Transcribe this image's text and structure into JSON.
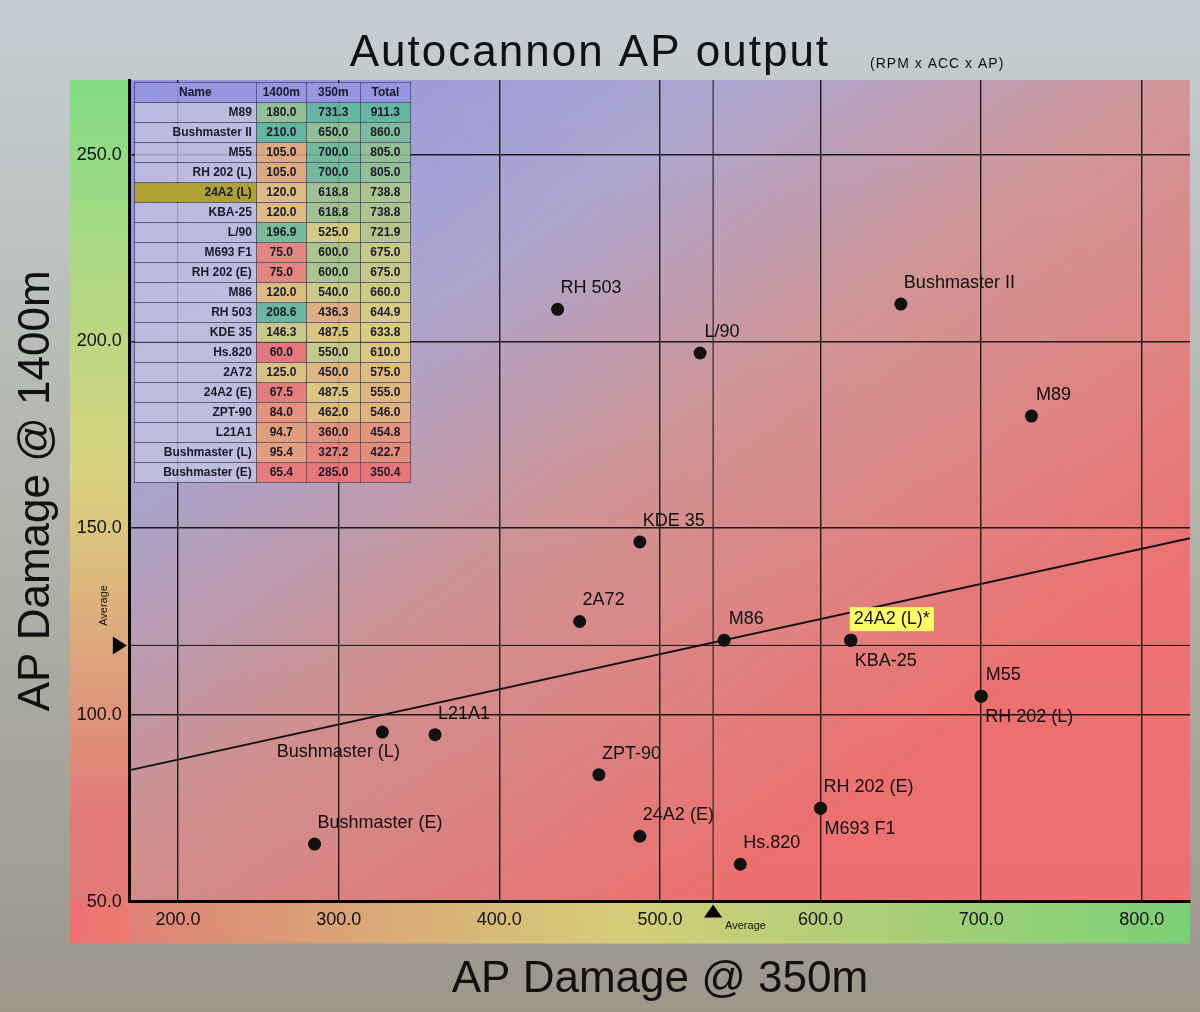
{
  "chart_data": {
    "type": "scatter",
    "title": "Autocannon AP output",
    "subtitle": "(RPM x ACC x AP)",
    "x_label": "AP Damage @ 350m",
    "y_label": "AP Damage @ 1400m",
    "xlim": [
      170,
      830
    ],
    "ylim": [
      50,
      270
    ],
    "xticks": [
      {
        "value": 200,
        "label": "200.0"
      },
      {
        "value": 300,
        "label": "300.0"
      },
      {
        "value": 400,
        "label": "400.0"
      },
      {
        "value": 500,
        "label": "500.0"
      },
      {
        "value": 600,
        "label": "600.0"
      },
      {
        "value": 700,
        "label": "700.0"
      },
      {
        "value": 800,
        "label": "800.0"
      }
    ],
    "yticks": [
      {
        "value": 50,
        "label": "50.0"
      },
      {
        "value": 100,
        "label": "100.0"
      },
      {
        "value": 150,
        "label": "150.0"
      },
      {
        "value": 200,
        "label": "200.0"
      },
      {
        "value": 250,
        "label": "250.0"
      }
    ],
    "grid": true,
    "color": "#111111",
    "points": [
      {
        "label": "M89",
        "x": 731.3,
        "y": 180.0
      },
      {
        "label": "Bushmaster II",
        "x": 650.0,
        "y": 210.0
      },
      {
        "label": "M55",
        "x": 700.0,
        "y": 105.0
      },
      {
        "label": "RH 202 (L)",
        "x": 700.0,
        "y": 105.0
      },
      {
        "label": "24A2 (L)*",
        "x": 618.8,
        "y": 120.0
      },
      {
        "label": "KBA-25",
        "x": 618.8,
        "y": 120.0
      },
      {
        "label": "L/90",
        "x": 525.0,
        "y": 196.9
      },
      {
        "label": "M693 F1",
        "x": 600.0,
        "y": 75.0
      },
      {
        "label": "RH 202 (E)",
        "x": 600.0,
        "y": 75.0
      },
      {
        "label": "M86",
        "x": 540.0,
        "y": 120.0
      },
      {
        "label": "RH 503",
        "x": 436.3,
        "y": 208.6
      },
      {
        "label": "KDE 35",
        "x": 487.5,
        "y": 146.3
      },
      {
        "label": "Hs.820",
        "x": 550.0,
        "y": 60.0
      },
      {
        "label": "2A72",
        "x": 450.0,
        "y": 125.0
      },
      {
        "label": "24A2 (E)",
        "x": 487.5,
        "y": 67.5
      },
      {
        "label": "ZPT-90",
        "x": 462.0,
        "y": 84.0
      },
      {
        "label": "L21A1",
        "x": 360.0,
        "y": 94.7
      },
      {
        "label": "Bushmaster (L)",
        "x": 327.2,
        "y": 95.4
      },
      {
        "label": "Bushmaster (E)",
        "x": 285.0,
        "y": 65.4
      }
    ],
    "highlight": "24A2 (L)*",
    "trend_line": {
      "x": [
        170,
        830
      ],
      "y": [
        85.2,
        147.3
      ]
    },
    "average": {
      "label": "Average",
      "x": 533.1,
      "y": 118.6
    }
  },
  "table": {
    "columns": [
      "Name",
      "1400m",
      "350m",
      "Total"
    ],
    "rows": [
      [
        "M89",
        "180.0",
        "731.3",
        "911.3"
      ],
      [
        "Bushmaster II",
        "210.0",
        "650.0",
        "860.0"
      ],
      [
        "M55",
        "105.0",
        "700.0",
        "805.0"
      ],
      [
        "RH 202 (L)",
        "105.0",
        "700.0",
        "805.0"
      ],
      [
        "24A2 (L)",
        "120.0",
        "618.8",
        "738.8"
      ],
      [
        "KBA-25",
        "120.0",
        "618.8",
        "738.8"
      ],
      [
        "L/90",
        "196.9",
        "525.0",
        "721.9"
      ],
      [
        "M693 F1",
        "75.0",
        "600.0",
        "675.0"
      ],
      [
        "RH 202 (E)",
        "75.0",
        "600.0",
        "675.0"
      ],
      [
        "M86",
        "120.0",
        "540.0",
        "660.0"
      ],
      [
        "RH 503",
        "208.6",
        "436.3",
        "644.9"
      ],
      [
        "KDE 35",
        "146.3",
        "487.5",
        "633.8"
      ],
      [
        "Hs.820",
        "60.0",
        "550.0",
        "610.0"
      ],
      [
        "2A72",
        "125.0",
        "450.0",
        "575.0"
      ],
      [
        "24A2 (E)",
        "67.5",
        "487.5",
        "555.0"
      ],
      [
        "ZPT-90",
        "84.0",
        "462.0",
        "546.0"
      ],
      [
        "L21A1",
        "94.7",
        "360.0",
        "454.8"
      ],
      [
        "Bushmaster (L)",
        "95.4",
        "327.2",
        "422.7"
      ],
      [
        "Bushmaster (E)",
        "65.4",
        "285.0",
        "350.4"
      ]
    ],
    "highlight": "24A2 (L)"
  }
}
